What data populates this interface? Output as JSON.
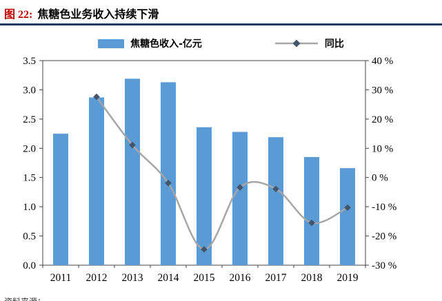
{
  "header": {
    "figure_label": "图 22:",
    "title": "焦糖色业务收入持续下滑"
  },
  "footer": {
    "source": "资料来源："
  },
  "colors": {
    "bar": "#5b9bd5",
    "line": "#a6a6a6",
    "marker": "#44546a",
    "accent_red": "#c00000",
    "rule_navy": "#1f3864",
    "axis": "#404040",
    "text": "#000000"
  },
  "chart_data": {
    "type": "bar",
    "subtype": "bar+line-dual-axis",
    "title": "焦糖色业务收入持续下滑",
    "categories": [
      "2011",
      "2012",
      "2013",
      "2014",
      "2015",
      "2016",
      "2017",
      "2018",
      "2019"
    ],
    "series": [
      {
        "name": "焦糖色收入-亿元",
        "type": "bar",
        "axis": "left",
        "values": [
          2.25,
          2.87,
          3.19,
          3.13,
          2.36,
          2.28,
          2.19,
          1.85,
          1.66
        ]
      },
      {
        "name": "同比",
        "type": "line",
        "axis": "right",
        "values": [
          null,
          27.6,
          11.1,
          -1.9,
          -24.6,
          -3.4,
          -3.9,
          -15.5,
          -10.3
        ]
      }
    ],
    "left_axis": {
      "min": 0,
      "max": 3.5,
      "step": 0.5,
      "tick_labels": [
        "0.0",
        "0.5",
        "1.0",
        "1.5",
        "2.0",
        "2.5",
        "3.0",
        "3.5"
      ]
    },
    "right_axis": {
      "min": -30,
      "max": 40,
      "step": 10,
      "tick_labels": [
        "-30 %",
        "-20 %",
        "-10 %",
        "0 %",
        "10 %",
        "20 %",
        "30 %",
        "40 %"
      ]
    },
    "grid": false,
    "legend_position": "top",
    "line_smoothed": true
  }
}
